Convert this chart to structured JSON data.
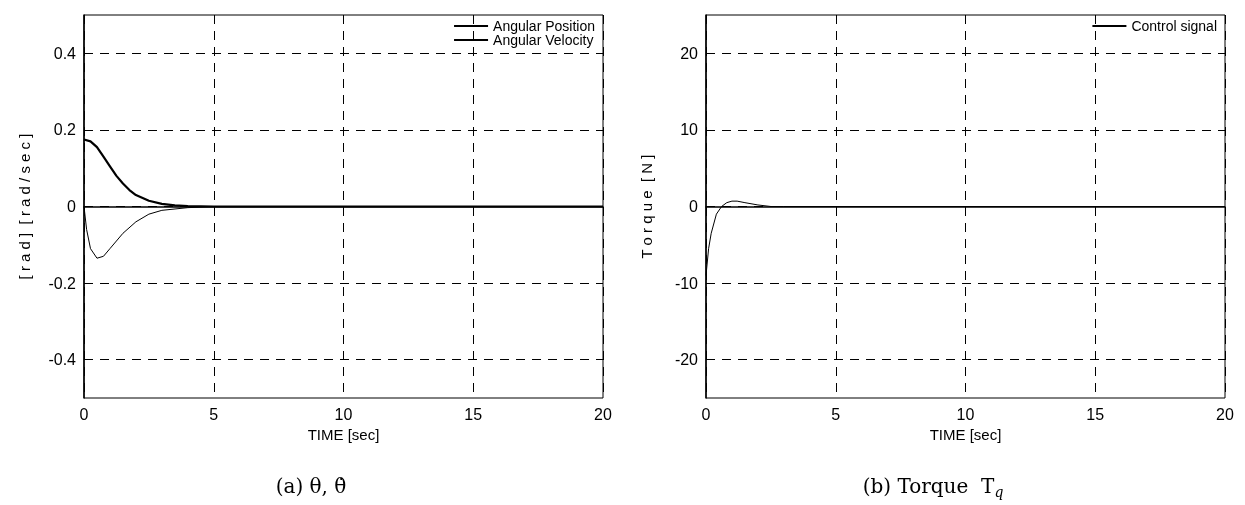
{
  "chart_data": [
    {
      "type": "line",
      "title": "(a) θ, θ̇",
      "xlabel": "TIME [sec]",
      "ylabel": "[ r a d ]  [ r a d / s e c ]",
      "xlim": [
        0,
        20
      ],
      "xticks": [
        0,
        5,
        10,
        15,
        20
      ],
      "ylim": [
        -0.5,
        0.5
      ],
      "yticks": [
        -0.4,
        -0.2,
        0,
        0.2,
        0.4
      ],
      "grid": true,
      "legend": "top right",
      "marker": "none",
      "line_style": "solid",
      "series": [
        {
          "name": "Angular Position",
          "color": "#000000",
          "x": [
            0,
            0.25,
            0.5,
            0.75,
            1,
            1.25,
            1.5,
            1.75,
            2,
            2.5,
            3,
            3.5,
            4,
            5,
            20
          ],
          "values": [
            0.175,
            0.17,
            0.155,
            0.13,
            0.105,
            0.08,
            0.06,
            0.043,
            0.03,
            0.015,
            0.007,
            0.003,
            0.001,
            0,
            0
          ]
        },
        {
          "name": "Angular Velocity",
          "color": "#000000",
          "x": [
            0,
            0.1,
            0.25,
            0.5,
            0.75,
            1,
            1.5,
            2,
            2.5,
            3,
            4,
            5,
            20
          ],
          "values": [
            0,
            -0.06,
            -0.11,
            -0.135,
            -0.13,
            -0.11,
            -0.07,
            -0.04,
            -0.02,
            -0.01,
            -0.003,
            0,
            0
          ]
        }
      ]
    },
    {
      "type": "line",
      "title": "(b) Torque  T$_{q}$",
      "xlabel": "TIME [sec]",
      "ylabel": "T o r q u e  [ N ]",
      "xlim": [
        0,
        20
      ],
      "xticks": [
        0,
        5,
        10,
        15,
        20
      ],
      "ylim": [
        -25,
        25
      ],
      "yticks": [
        -20,
        -10,
        0,
        10,
        20
      ],
      "grid": true,
      "legend": "top right",
      "marker": "none",
      "line_style": "solid",
      "series": [
        {
          "name": "Control signal",
          "color": "#000000",
          "x": [
            0,
            0.1,
            0.2,
            0.4,
            0.6,
            0.8,
            1,
            1.2,
            1.5,
            2,
            2.5,
            3,
            20
          ],
          "values": [
            -9,
            -5.5,
            -3.5,
            -1,
            0,
            0.5,
            0.7,
            0.7,
            0.5,
            0.2,
            0,
            0,
            0
          ]
        }
      ]
    }
  ]
}
